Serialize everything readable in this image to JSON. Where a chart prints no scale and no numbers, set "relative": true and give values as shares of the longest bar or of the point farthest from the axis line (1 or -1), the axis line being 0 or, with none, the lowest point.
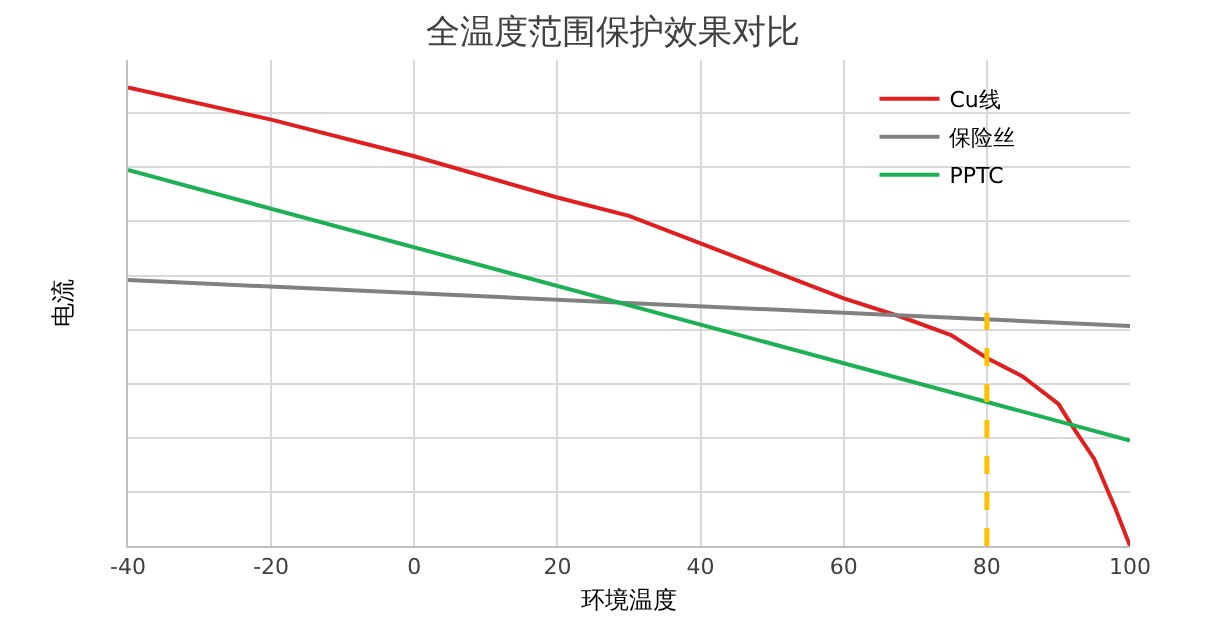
{
  "chart_data": {
    "type": "line",
    "title": "全温度范围保护效果对比",
    "xlabel": "环境温度",
    "ylabel": "电流",
    "relative": true,
    "xlim": [
      -40,
      100
    ],
    "xticks": [
      -40,
      -20,
      0,
      20,
      40,
      60,
      80,
      100
    ],
    "grid": true,
    "legend": "top right",
    "marker": "none",
    "line_style": "solid",
    "ref_lines": [
      {
        "axis": "x",
        "value": 80,
        "color": "#ffc000",
        "line_style": "dashed"
      }
    ],
    "series": [
      {
        "name": "Cu线",
        "color": "#e02020",
        "x": [
          -40,
          -20,
          0,
          20,
          30,
          40,
          50,
          60,
          68,
          75,
          80,
          85,
          90,
          92,
          95,
          98,
          100
        ],
        "values": [
          1,
          0.93,
          0.85,
          0.76,
          0.72,
          0.66,
          0.6,
          0.54,
          0.5,
          0.46,
          0.41,
          0.37,
          0.31,
          0.26,
          0.19,
          0.08,
          0
        ]
      },
      {
        "name": "保险丝",
        "color": "#808080",
        "x": [
          -40,
          100
        ],
        "values": [
          0.58,
          0.48
        ]
      },
      {
        "name": "PPTC",
        "color": "#1db054",
        "x": [
          -40,
          100
        ],
        "values": [
          0.82,
          0.23
        ]
      }
    ]
  }
}
